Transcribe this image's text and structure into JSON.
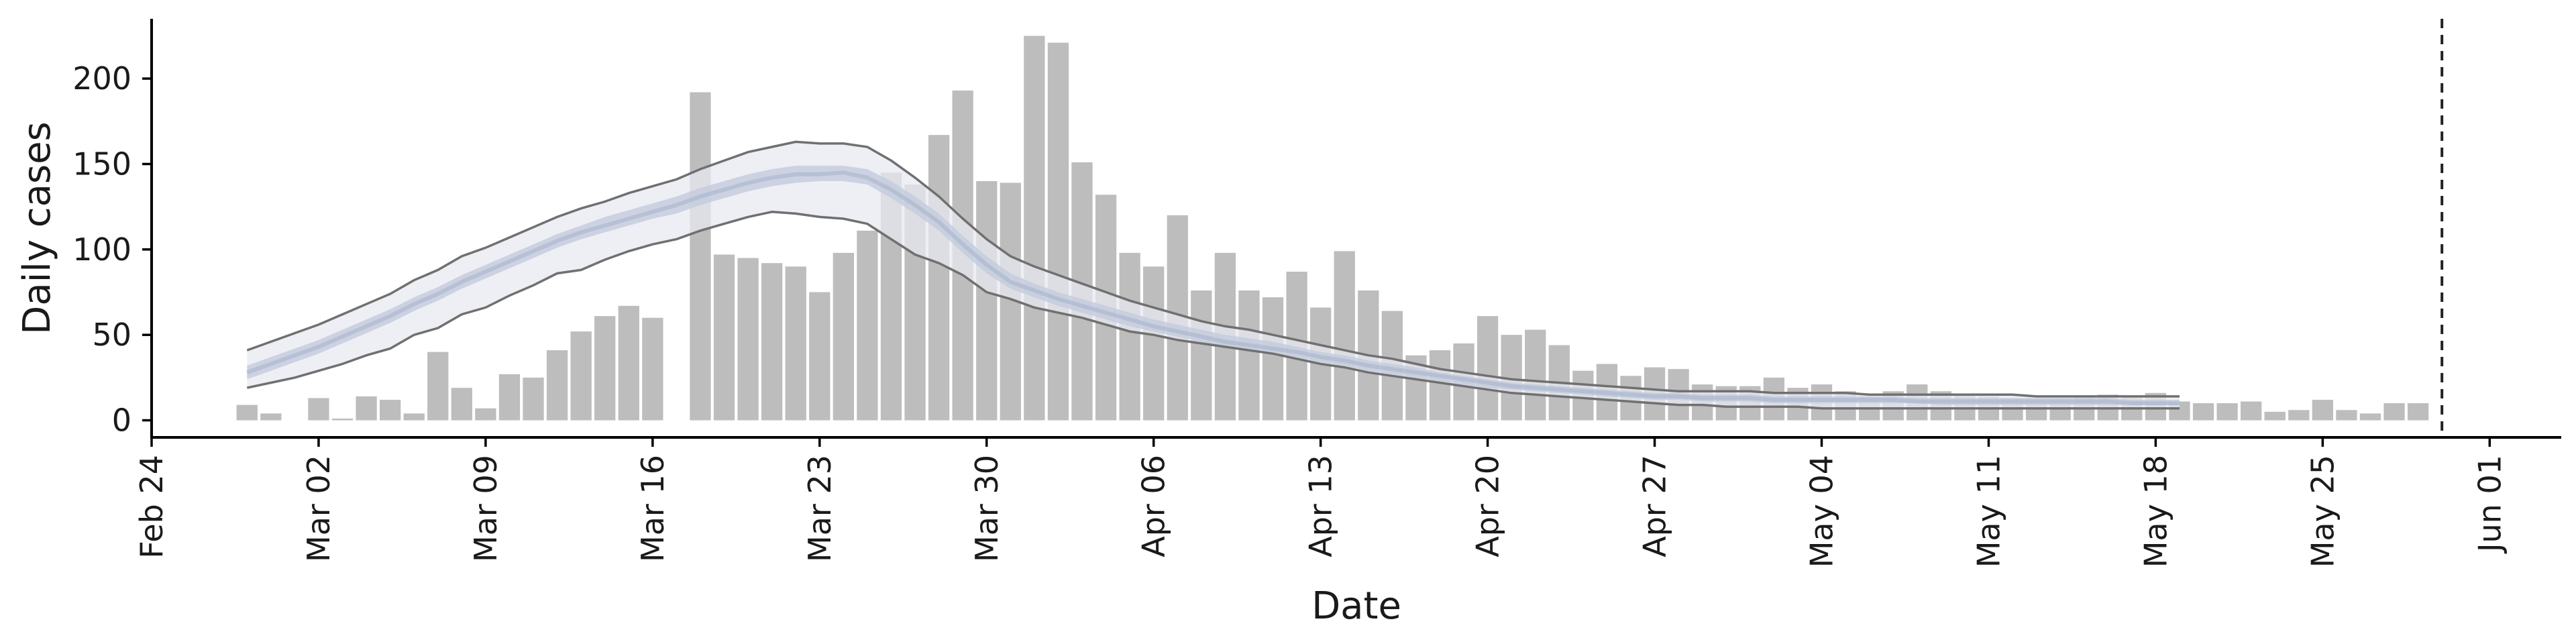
{
  "chart_data": {
    "type": "bar",
    "xlabel": "Date",
    "ylabel": "Daily cases",
    "ylim": [
      -10,
      235
    ],
    "yticks": [
      0,
      50,
      100,
      150,
      200
    ],
    "x_start": "2020-02-24",
    "x_end": "2020-06-04",
    "xticks": [
      {
        "date": "2020-02-24",
        "label": "Feb 24"
      },
      {
        "date": "2020-03-02",
        "label": "Mar 02"
      },
      {
        "date": "2020-03-09",
        "label": "Mar 09"
      },
      {
        "date": "2020-03-16",
        "label": "Mar 16"
      },
      {
        "date": "2020-03-23",
        "label": "Mar 23"
      },
      {
        "date": "2020-03-30",
        "label": "Mar 30"
      },
      {
        "date": "2020-04-06",
        "label": "Apr 06"
      },
      {
        "date": "2020-04-13",
        "label": "Apr 13"
      },
      {
        "date": "2020-04-20",
        "label": "Apr 20"
      },
      {
        "date": "2020-04-27",
        "label": "Apr 27"
      },
      {
        "date": "2020-05-04",
        "label": "May 04"
      },
      {
        "date": "2020-05-11",
        "label": "May 11"
      },
      {
        "date": "2020-05-18",
        "label": "May 18"
      },
      {
        "date": "2020-05-25",
        "label": "May 25"
      },
      {
        "date": "2020-06-01",
        "label": "Jun 01"
      }
    ],
    "vline_date": "2020-05-30",
    "grid": false,
    "colors": {
      "bars": "#bdbdbd",
      "outer_band": "#e8eaf1",
      "inner_band": "#c3cbdc",
      "median": "#a9b4cd",
      "bound_lines": "#707070",
      "vline": "#222222",
      "axis": "#000000"
    },
    "bars": {
      "start_date": "2020-02-28",
      "values": [
        9,
        4,
        0,
        13,
        1,
        14,
        12,
        4,
        40,
        19,
        7,
        27,
        25,
        41,
        52,
        61,
        67,
        60,
        0,
        192,
        97,
        95,
        92,
        90,
        75,
        98,
        111,
        145,
        138,
        167,
        193,
        140,
        139,
        225,
        221,
        151,
        132,
        98,
        90,
        120,
        76,
        98,
        76,
        72,
        87,
        66,
        99,
        76,
        64,
        38,
        41,
        45,
        61,
        50,
        53,
        44,
        29,
        33,
        26,
        31,
        30,
        21,
        20,
        20,
        25,
        19,
        21,
        17,
        14,
        17,
        21,
        17,
        15,
        14,
        13,
        13,
        13,
        14,
        15,
        14,
        16,
        11,
        10,
        10,
        11,
        5,
        6,
        12,
        6,
        4,
        10,
        10
      ]
    },
    "model_forecast": {
      "start_date": "2020-02-28",
      "outer_upper": [
        41,
        46,
        51,
        56,
        62,
        68,
        74,
        82,
        88,
        96,
        101,
        107,
        113,
        119,
        124,
        128,
        133,
        137,
        141,
        147,
        152,
        157,
        160,
        163,
        162,
        162,
        160,
        152,
        142,
        131,
        118,
        106,
        96,
        90,
        85,
        80,
        75,
        70,
        66,
        62,
        58,
        55,
        53,
        50,
        47,
        44,
        41,
        38,
        36,
        33,
        30,
        28,
        26,
        24,
        23,
        22,
        21,
        20,
        19,
        18,
        17,
        17,
        17,
        17,
        16,
        16,
        16,
        16,
        15,
        15,
        15,
        15,
        15,
        15,
        15,
        14,
        14,
        14,
        14,
        14,
        14,
        14
      ],
      "inner_upper": [
        32,
        37,
        42,
        47,
        53,
        59,
        65,
        72,
        78,
        85,
        91,
        97,
        103,
        109,
        114,
        119,
        123,
        127,
        131,
        136,
        140,
        144,
        147,
        149,
        149,
        149,
        147,
        140,
        131,
        121,
        108,
        96,
        86,
        80,
        75,
        71,
        67,
        63,
        59,
        56,
        53,
        50,
        48,
        46,
        43,
        40,
        38,
        35,
        33,
        31,
        28,
        26,
        24,
        22,
        21,
        20,
        19,
        18,
        17,
        16,
        16,
        15,
        15,
        15,
        14,
        14,
        14,
        14,
        14,
        14,
        13,
        13,
        13,
        13,
        13,
        13,
        13,
        13,
        13,
        12,
        12,
        12
      ],
      "median": [
        28,
        33,
        38,
        43,
        49,
        55,
        61,
        68,
        74,
        81,
        87,
        93,
        99,
        105,
        110,
        114,
        118,
        122,
        126,
        131,
        135,
        139,
        142,
        144,
        144,
        145,
        142,
        135,
        126,
        116,
        103,
        91,
        81,
        76,
        71,
        67,
        63,
        59,
        55,
        52,
        49,
        46,
        44,
        42,
        40,
        37,
        35,
        32,
        30,
        28,
        26,
        24,
        22,
        20,
        19,
        18,
        17,
        16,
        15,
        14,
        14,
        13,
        13,
        13,
        12,
        12,
        12,
        12,
        12,
        12,
        11,
        11,
        11,
        11,
        11,
        11,
        11,
        11,
        11,
        10,
        10,
        10
      ],
      "inner_lower": [
        24,
        29,
        34,
        39,
        45,
        51,
        57,
        64,
        70,
        77,
        83,
        89,
        95,
        101,
        106,
        110,
        114,
        118,
        121,
        126,
        130,
        134,
        137,
        139,
        140,
        140,
        138,
        130,
        121,
        111,
        98,
        86,
        77,
        72,
        67,
        63,
        59,
        55,
        52,
        49,
        46,
        43,
        41,
        39,
        37,
        34,
        32,
        29,
        27,
        25,
        23,
        21,
        19,
        18,
        17,
        16,
        15,
        14,
        13,
        12,
        12,
        11,
        11,
        11,
        10,
        10,
        10,
        10,
        10,
        10,
        10,
        9,
        9,
        9,
        9,
        9,
        9,
        9,
        9,
        9,
        9,
        9
      ],
      "outer_lower": [
        19,
        22,
        25,
        29,
        33,
        38,
        42,
        50,
        54,
        62,
        66,
        73,
        79,
        86,
        88,
        94,
        99,
        103,
        106,
        111,
        115,
        119,
        122,
        121,
        119,
        118,
        115,
        106,
        97,
        92,
        85,
        75,
        71,
        66,
        63,
        60,
        56,
        52,
        50,
        47,
        45,
        43,
        41,
        39,
        36,
        33,
        31,
        28,
        26,
        24,
        22,
        20,
        18,
        16,
        15,
        14,
        13,
        12,
        11,
        10,
        9,
        9,
        8,
        8,
        8,
        8,
        7,
        7,
        7,
        7,
        7,
        7,
        7,
        7,
        7,
        7,
        7,
        7,
        7,
        7,
        7,
        7
      ]
    }
  }
}
